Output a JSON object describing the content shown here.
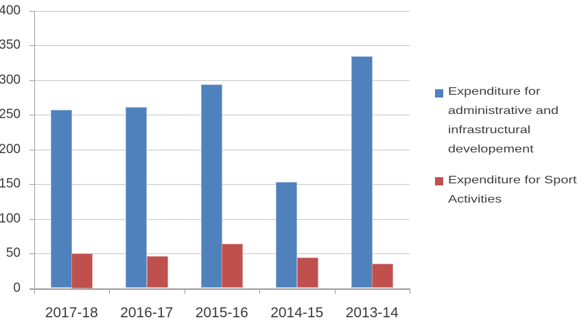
{
  "chart_data": {
    "type": "bar",
    "categories": [
      "2017-18",
      "2016-17",
      "2015-16",
      "2014-15",
      "2013-14"
    ],
    "series": [
      {
        "name": "Expenditure for administrative and infrastructural developement",
        "color": "#4F81BD",
        "border_color": "#95B3D7",
        "values": [
          257,
          261,
          294,
          153,
          335
        ]
      },
      {
        "name": "Expenditure for Sport Activities",
        "color": "#C0504D",
        "border_color": "#D99694",
        "values": [
          50,
          46,
          64,
          44,
          35
        ]
      }
    ],
    "title": "",
    "xlabel": "",
    "ylabel": "",
    "ylim": [
      0,
      400
    ],
    "ytick_step": 50,
    "yticks": [
      "0",
      "50",
      "100",
      "150",
      "200",
      "250",
      "300",
      "350",
      "400"
    ],
    "grid": "horizontal",
    "legend_position": "right",
    "colors": {
      "gridline": "#C6C6C6",
      "axis": "#9C9C9C",
      "tick_label_text": "#3A3A3A",
      "legend_text": "#3F3F3F",
      "background": "#FFFFFF"
    }
  }
}
